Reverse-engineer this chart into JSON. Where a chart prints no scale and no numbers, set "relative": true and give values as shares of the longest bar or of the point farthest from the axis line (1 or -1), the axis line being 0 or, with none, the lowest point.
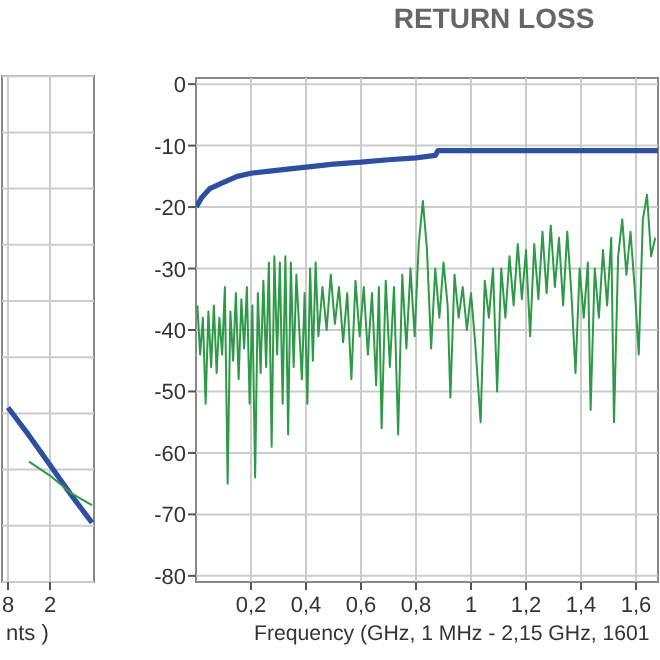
{
  "chart_data": [
    {
      "type": "line",
      "relative": true,
      "tick_labels": "x",
      "grid": true,
      "xlabel": "nts )",
      "categories": [
        "8",
        null,
        "2",
        null,
        null
      ],
      "series": [
        {
          "color": "#2e4fa0",
          "values": [
            1,
            0.84,
            0.67,
            0.5,
            0.34
          ]
        },
        {
          "color": "#2e9a48",
          "values": [
            null,
            0.69,
            0.61,
            0.51,
            0.44
          ]
        }
      ]
    },
    {
      "type": "line",
      "title": "RETURN LOSS",
      "xlabel": "Frequency (GHz, 1 MHz - 2,15 GHz, 1601",
      "grid": true,
      "xlim": [
        0,
        1.68
      ],
      "ylim": [
        -81,
        1
      ],
      "xticks": [
        {
          "value": 0.2,
          "label": "0,2"
        },
        {
          "value": 0.4,
          "label": "0,4"
        },
        {
          "value": 0.6,
          "label": "0,6"
        },
        {
          "value": 0.8,
          "label": "0,8"
        },
        1,
        {
          "value": 1.2,
          "label": "1,2"
        },
        {
          "value": 1.4,
          "label": "1,4"
        },
        {
          "value": 1.6,
          "label": "1,6"
        }
      ],
      "yticks": [
        -80,
        -70,
        -60,
        -50,
        -40,
        -30,
        -20,
        -10,
        0
      ],
      "series": [
        {
          "color": "#2e9a48",
          "x": [
            0.005,
            0.015,
            0.025,
            0.035,
            0.045,
            0.055,
            0.065,
            0.075,
            0.085,
            0.095,
            0.105,
            0.115,
            0.125,
            0.135,
            0.145,
            0.155,
            0.165,
            0.175,
            0.185,
            0.195,
            0.205,
            0.215,
            0.225,
            0.235,
            0.245,
            0.255,
            0.265,
            0.275,
            0.285,
            0.295,
            0.305,
            0.315,
            0.325,
            0.335,
            0.345,
            0.355,
            0.365,
            0.385,
            0.395,
            0.405,
            0.415,
            0.425,
            0.435,
            0.445,
            0.46,
            0.475,
            0.49,
            0.505,
            0.52,
            0.535,
            0.55,
            0.565,
            0.58,
            0.595,
            0.61,
            0.625,
            0.64,
            0.655,
            0.665,
            0.675,
            0.69,
            0.705,
            0.72,
            0.735,
            0.75,
            0.765,
            0.78,
            0.795,
            0.81,
            0.825,
            0.84,
            0.855,
            0.87,
            0.885,
            0.9,
            0.915,
            0.925,
            0.94,
            0.955,
            0.97,
            0.985,
            1.0,
            1.015,
            1.035,
            1.05,
            1.065,
            1.08,
            1.095,
            1.11,
            1.125,
            1.14,
            1.155,
            1.17,
            1.185,
            1.2,
            1.215,
            1.23,
            1.245,
            1.26,
            1.275,
            1.29,
            1.305,
            1.32,
            1.335,
            1.35,
            1.365,
            1.38,
            1.395,
            1.41,
            1.425,
            1.435,
            1.45,
            1.465,
            1.48,
            1.495,
            1.51,
            1.52,
            1.535,
            1.55,
            1.565,
            1.58,
            1.595,
            1.61,
            1.625,
            1.64,
            1.655,
            1.67
          ],
          "values": [
            -36,
            -44,
            -38,
            -52,
            -37,
            -46,
            -36,
            -47,
            -38,
            -44,
            -33,
            -65,
            -37,
            -45,
            -34,
            -48,
            -35,
            -43,
            -33,
            -52,
            -36,
            -64,
            -34,
            -47,
            -32,
            -46,
            -29,
            -59,
            -28,
            -44,
            -29,
            -52,
            -28,
            -57,
            -29,
            -46,
            -31,
            -48,
            -34,
            -52,
            -30,
            -45,
            -29,
            -41,
            -33,
            -40,
            -31,
            -39,
            -33,
            -42,
            -34,
            -48,
            -32,
            -41,
            -33,
            -44,
            -34,
            -49,
            -33,
            -56,
            -32,
            -46,
            -33,
            -57,
            -31,
            -43,
            -30,
            -41,
            -26,
            -19,
            -27,
            -43,
            -30,
            -38,
            -29,
            -36,
            -51,
            -31,
            -38,
            -33,
            -40,
            -34,
            -42,
            -55,
            -32,
            -38,
            -30,
            -50,
            -30,
            -38,
            -28,
            -36,
            -26,
            -35,
            -27,
            -41,
            -26,
            -35,
            -24,
            -34,
            -23,
            -33,
            -25,
            -36,
            -24,
            -34,
            -47,
            -30,
            -38,
            -29,
            -53,
            -30,
            -38,
            -27,
            -36,
            -25,
            -55,
            -28,
            -22,
            -31,
            -24,
            -33,
            -44,
            -22,
            -18,
            -28,
            -25
          ]
        },
        {
          "color": "#2e4fa0",
          "x": [
            0.001,
            0.02,
            0.05,
            0.1,
            0.15,
            0.2,
            0.3,
            0.4,
            0.5,
            0.6,
            0.7,
            0.8,
            0.87,
            0.88,
            1.0,
            1.2,
            1.4,
            1.6,
            1.68
          ],
          "values": [
            -20,
            -18.5,
            -17,
            -16,
            -15,
            -14.5,
            -14,
            -13.5,
            -13,
            -12.7,
            -12.3,
            -12,
            -11.6,
            -10.8,
            -10.8,
            -10.8,
            -10.8,
            -10.8,
            -10.8
          ]
        }
      ]
    }
  ]
}
